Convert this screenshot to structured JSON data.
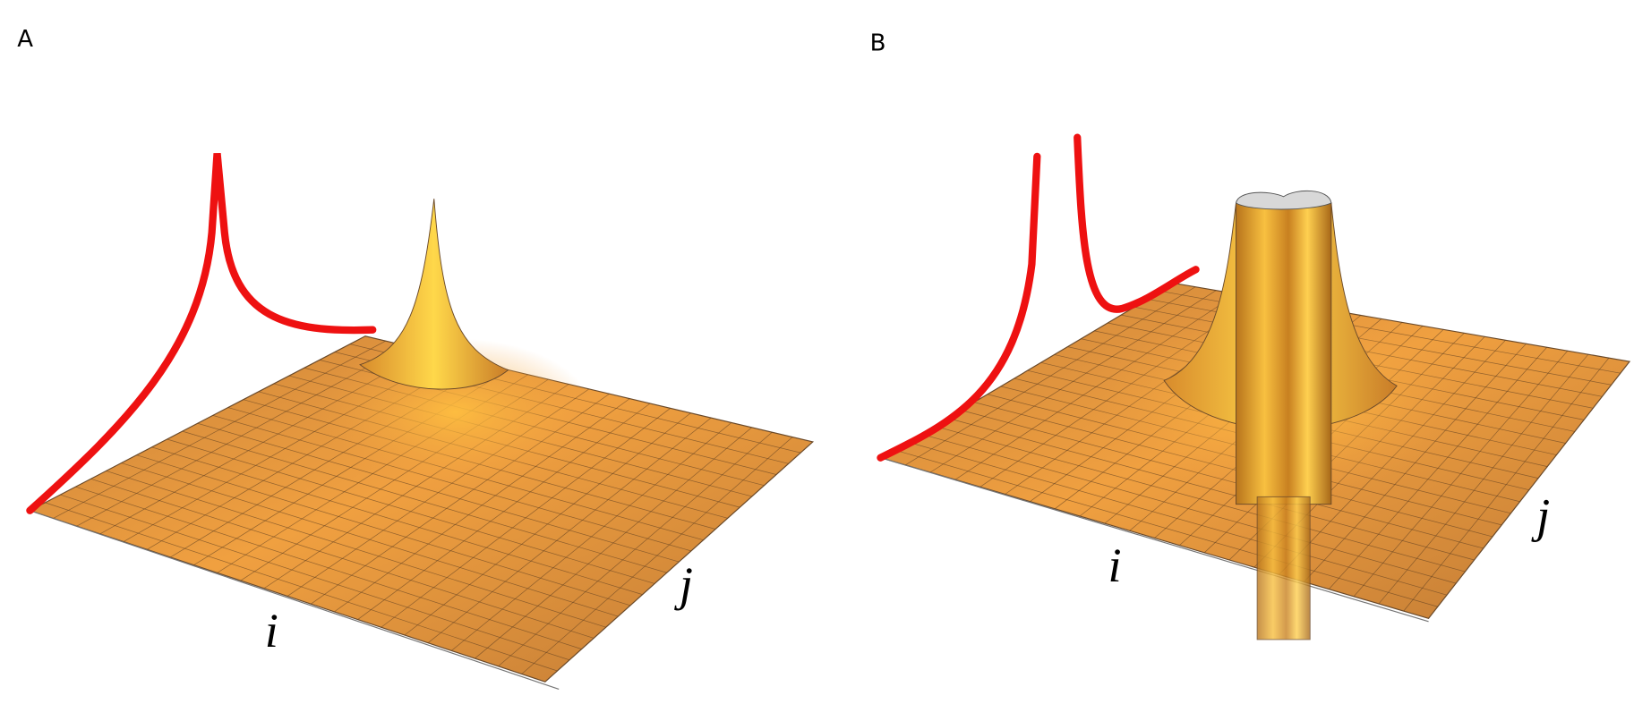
{
  "panels": [
    {
      "label": "A",
      "axis_i": "i",
      "axis_j": "j"
    },
    {
      "label": "B",
      "axis_i": "i",
      "axis_j": "j"
    }
  ]
}
